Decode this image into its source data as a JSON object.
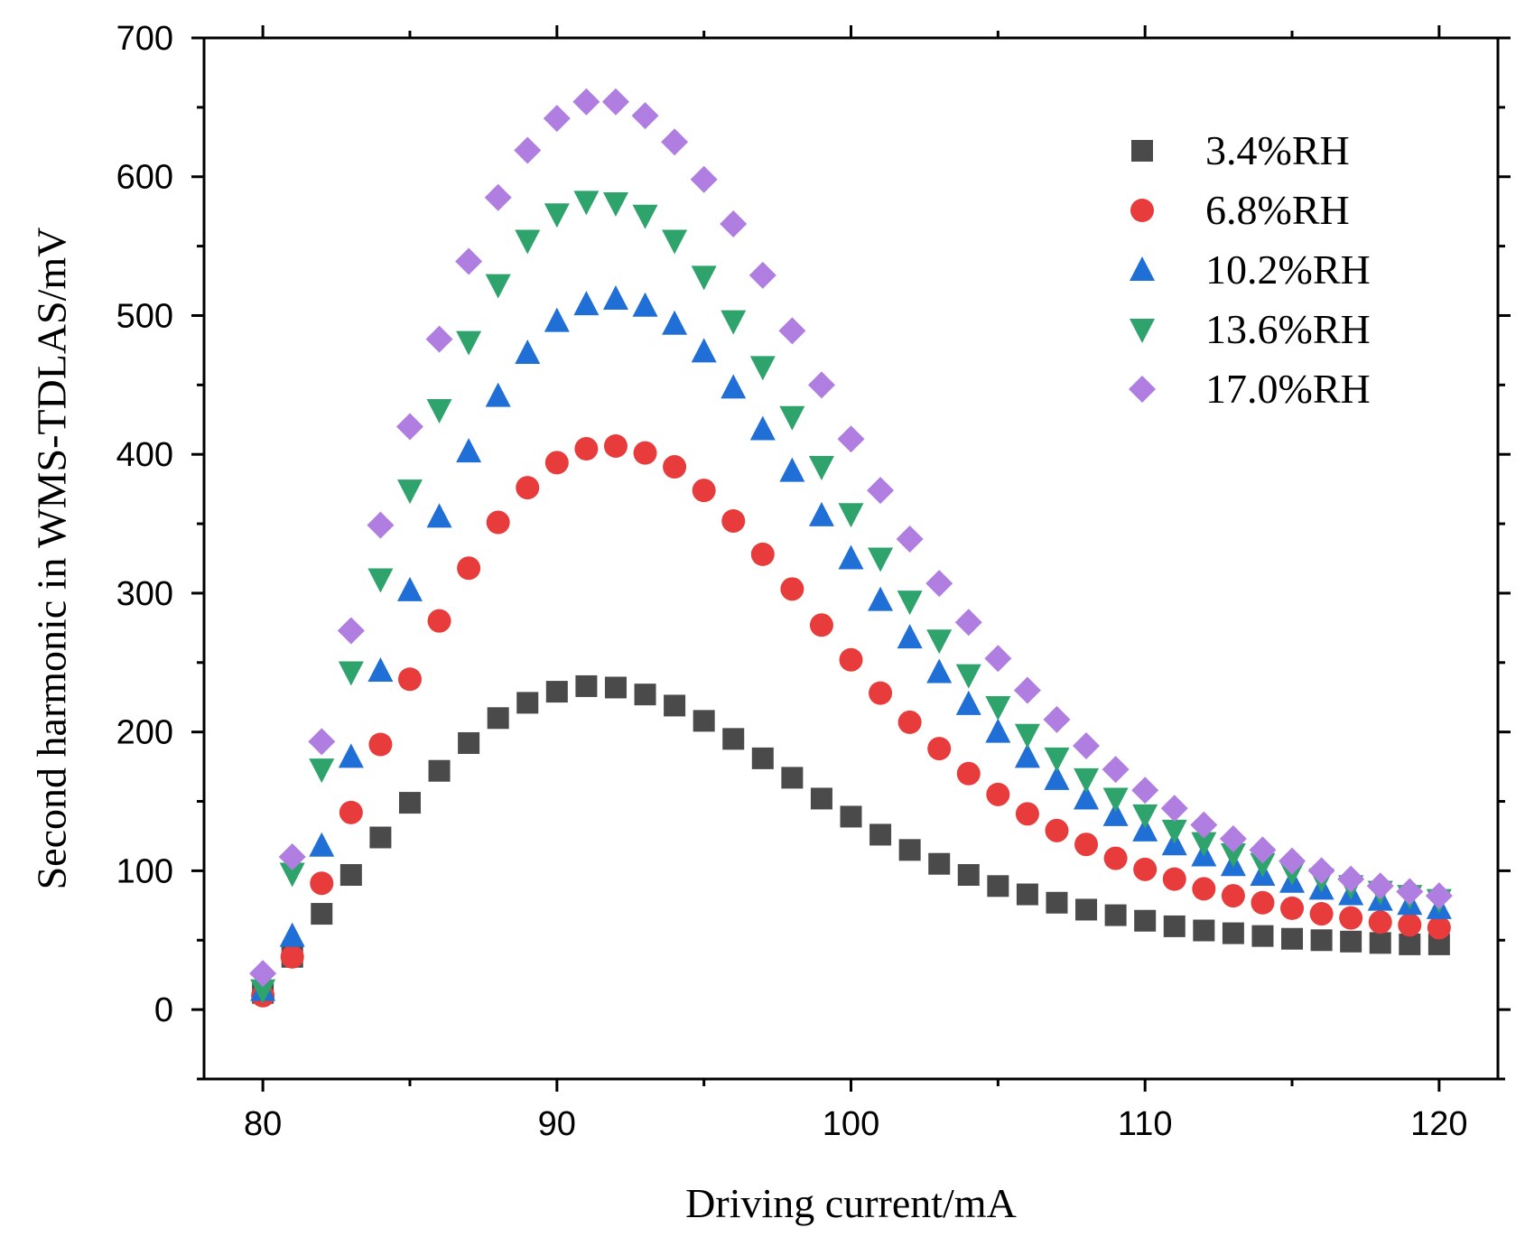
{
  "chart_data": {
    "type": "scatter",
    "title": "",
    "xlabel": "Driving current/mA",
    "ylabel": "Second harmonic in WMS-TDLAS/mV",
    "xlim": [
      78,
      122
    ],
    "ylim": [
      -50,
      700
    ],
    "xticks": [
      80,
      90,
      100,
      110,
      120
    ],
    "yticks": [
      0,
      100,
      200,
      300,
      400,
      500,
      600,
      700
    ],
    "grid": false,
    "legend": "top-right",
    "x": [
      80,
      81,
      82,
      83,
      84,
      85,
      86,
      87,
      88,
      89,
      90,
      91,
      92,
      93,
      94,
      95,
      96,
      97,
      98,
      99,
      100,
      101,
      102,
      103,
      104,
      105,
      106,
      107,
      108,
      109,
      110,
      111,
      112,
      113,
      114,
      115,
      116,
      117,
      118,
      119,
      120
    ],
    "series": [
      {
        "name": "3.4%RH",
        "marker": "square",
        "color": "#4a4a4a",
        "values": [
          12,
          38,
          69,
          97,
          124,
          149,
          172,
          192,
          210,
          221,
          229,
          233,
          232,
          227,
          219,
          208,
          195,
          181,
          167,
          152,
          139,
          126,
          115,
          105,
          97,
          89,
          83,
          77,
          72,
          68,
          64,
          60,
          57,
          55,
          53,
          51,
          50,
          49,
          48,
          47,
          47
        ]
      },
      {
        "name": "6.8%RH",
        "marker": "circle",
        "color": "#e83b3b",
        "values": [
          10,
          38,
          91,
          142,
          191,
          238,
          280,
          318,
          351,
          376,
          394,
          404,
          406,
          401,
          391,
          374,
          352,
          328,
          303,
          277,
          252,
          228,
          207,
          188,
          170,
          155,
          141,
          129,
          119,
          109,
          101,
          94,
          87,
          82,
          77,
          73,
          69,
          66,
          63,
          61,
          59
        ]
      },
      {
        "name": "10.2%RH",
        "marker": "triangle-up",
        "color": "#1f6fd6",
        "values": [
          14,
          53,
          118,
          182,
          244,
          302,
          355,
          402,
          442,
          473,
          496,
          508,
          512,
          507,
          494,
          474,
          448,
          418,
          388,
          356,
          325,
          295,
          268,
          243,
          220,
          200,
          182,
          166,
          152,
          140,
          129,
          119,
          111,
          104,
          97,
          92,
          87,
          83,
          79,
          76,
          73
        ]
      },
      {
        "name": "13.6%RH",
        "marker": "triangle-down",
        "color": "#2ea36c",
        "values": [
          14,
          98,
          173,
          243,
          310,
          374,
          432,
          481,
          522,
          554,
          573,
          582,
          581,
          572,
          554,
          528,
          496,
          463,
          427,
          391,
          357,
          325,
          294,
          266,
          241,
          218,
          198,
          181,
          166,
          152,
          140,
          129,
          120,
          112,
          105,
          99,
          94,
          89,
          85,
          82,
          79
        ]
      },
      {
        "name": "17.0%RH",
        "marker": "diamond",
        "color": "#b07ee0",
        "values": [
          26,
          110,
          193,
          273,
          349,
          420,
          483,
          539,
          585,
          619,
          642,
          654,
          654,
          644,
          625,
          598,
          566,
          529,
          489,
          450,
          411,
          374,
          339,
          307,
          279,
          253,
          230,
          209,
          190,
          173,
          158,
          145,
          133,
          123,
          115,
          107,
          100,
          94,
          89,
          85,
          82
        ]
      }
    ]
  }
}
